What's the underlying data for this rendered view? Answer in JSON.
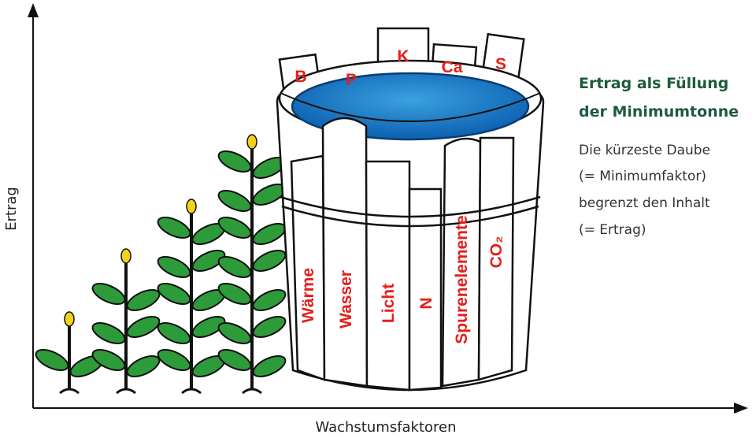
{
  "axes": {
    "y_label": "Ertrag",
    "x_label": "Wachstumsfaktoren"
  },
  "barrel": {
    "back_staves": [
      "B",
      "P",
      "K",
      "Ca",
      "S"
    ],
    "front_staves": [
      "Wärme",
      "Wasser",
      "Licht",
      "N",
      "Spurenelemente",
      "CO₂"
    ]
  },
  "caption": {
    "title_lines": [
      "Ertrag als Füllung",
      "der Minimumtonne"
    ],
    "body_lines": [
      "Die kürzeste Daube",
      "(= Minimumfaktor)",
      "begrenzt den Inhalt",
      "(= Ertrag)"
    ]
  }
}
